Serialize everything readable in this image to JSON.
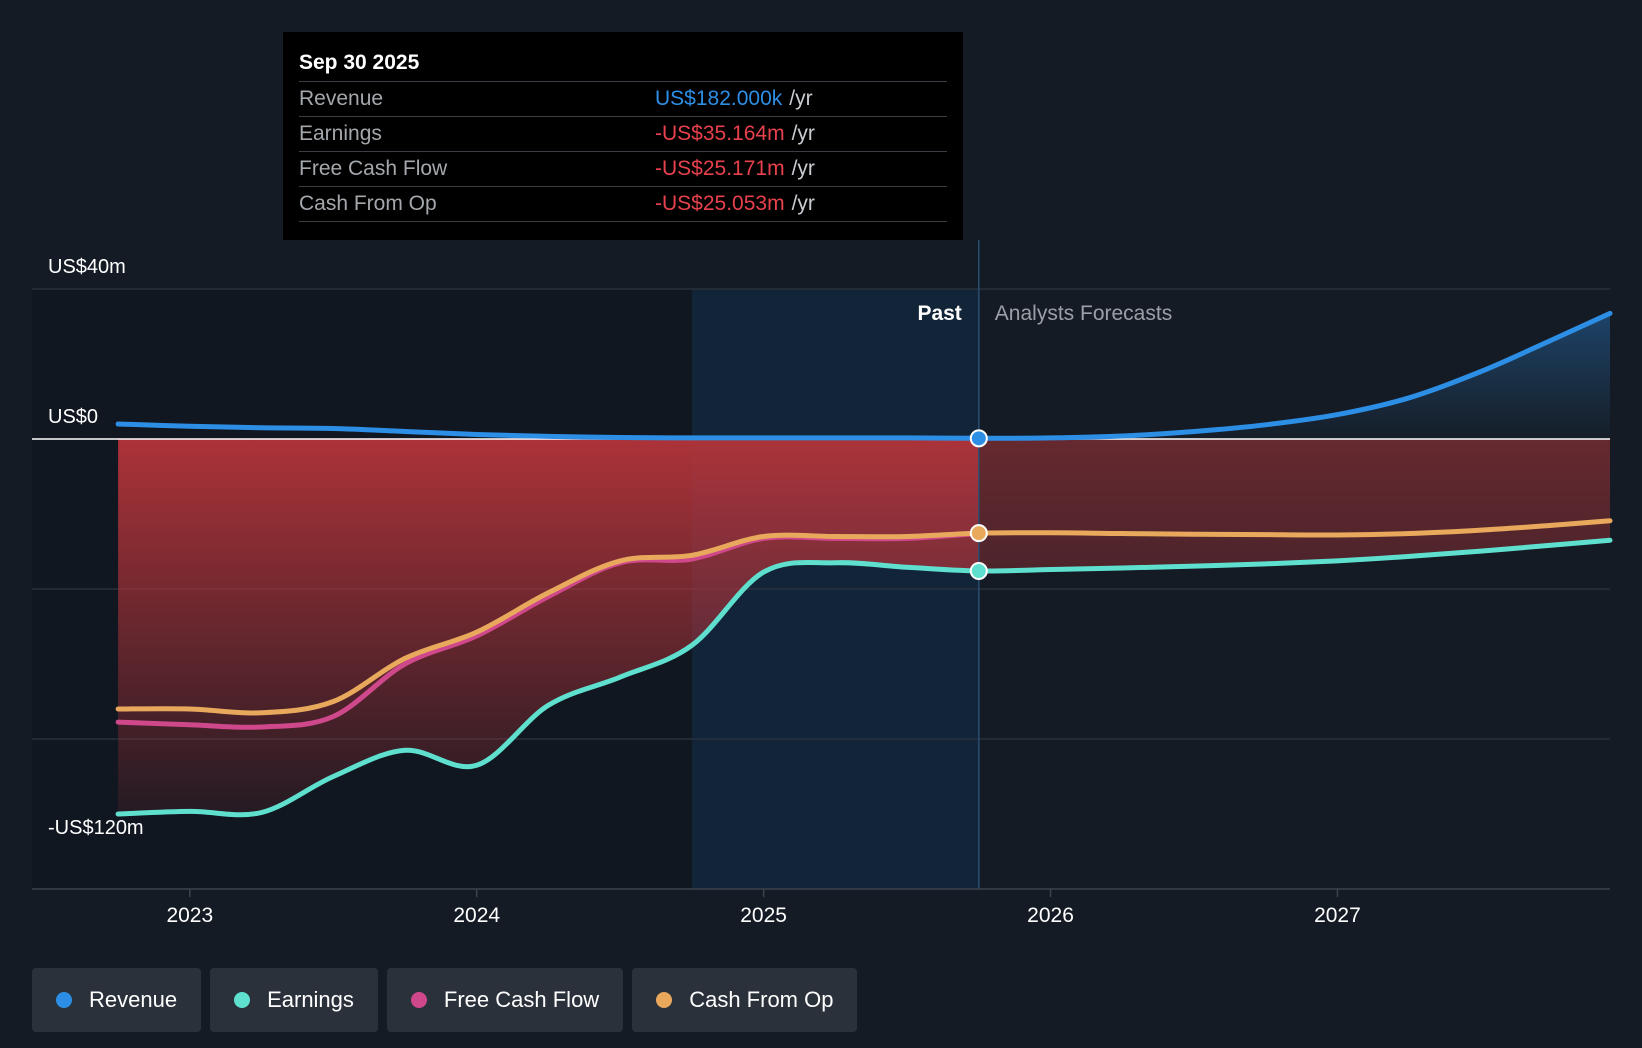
{
  "tooltip": {
    "date": "Sep 30 2025",
    "rows": [
      {
        "label": "Revenue",
        "value": "US$182.000k",
        "unit": "/yr",
        "color": "#2d8ee6"
      },
      {
        "label": "Earnings",
        "value": "-US$35.164m",
        "unit": "/yr",
        "color": "#e8414e"
      },
      {
        "label": "Free Cash Flow",
        "value": "-US$25.171m",
        "unit": "/yr",
        "color": "#e8414e"
      },
      {
        "label": "Cash From Op",
        "value": "-US$25.053m",
        "unit": "/yr",
        "color": "#e8414e"
      }
    ]
  },
  "legend": [
    {
      "label": "Revenue",
      "color": "#2d8ee6"
    },
    {
      "label": "Earnings",
      "color": "#5fe0cf"
    },
    {
      "label": "Free Cash Flow",
      "color": "#d0488c"
    },
    {
      "label": "Cash From Op",
      "color": "#e9a95c"
    }
  ],
  "chart_data": {
    "type": "line",
    "title": "",
    "xlabel": "",
    "ylabel": "",
    "ylim": [
      -120,
      40
    ],
    "y_tick_labels": [
      {
        "value": 40,
        "label": "US$40m"
      },
      {
        "value": 0,
        "label": "US$0"
      },
      {
        "value": -120,
        "label": "-US$120m"
      }
    ],
    "xlim": [
      2022.45,
      2027.95
    ],
    "x_tick_labels": [
      {
        "value": 2023,
        "label": "2023"
      },
      {
        "value": 2024,
        "label": "2024"
      },
      {
        "value": 2025,
        "label": "2025"
      },
      {
        "value": 2026,
        "label": "2026"
      },
      {
        "value": 2027,
        "label": "2027"
      }
    ],
    "past_label": "Past",
    "forecast_label": "Analysts Forecasts",
    "highlight_start": 2024.75,
    "divider_x": 2025.75,
    "series": [
      {
        "name": "Revenue",
        "color": "#2d8ee6",
        "x": [
          2022.75,
          2023.0,
          2023.25,
          2023.5,
          2023.75,
          2024.0,
          2024.25,
          2024.5,
          2024.75,
          2025.0,
          2025.25,
          2025.5,
          2025.75,
          2026.0,
          2026.25,
          2026.5,
          2026.75,
          2027.0,
          2027.25,
          2027.5,
          2027.75,
          2027.95
        ],
        "values": [
          4.0,
          3.4,
          3.0,
          2.8,
          2.0,
          1.2,
          0.7,
          0.4,
          0.3,
          0.3,
          0.3,
          0.3,
          0.18,
          0.3,
          0.8,
          2.0,
          3.8,
          6.5,
          11.0,
          18.0,
          26.5,
          33.5
        ]
      },
      {
        "name": "Earnings",
        "color": "#5fe0cf",
        "x": [
          2022.75,
          2023.0,
          2023.25,
          2023.5,
          2023.75,
          2024.0,
          2024.25,
          2024.5,
          2024.75,
          2025.0,
          2025.25,
          2025.5,
          2025.75,
          2026.0,
          2026.25,
          2026.5,
          2026.75,
          2027.0,
          2027.25,
          2027.5,
          2027.75,
          2027.95
        ],
        "values": [
          -100.0,
          -99.3,
          -99.6,
          -90.0,
          -83.0,
          -87.0,
          -71.0,
          -63.5,
          -55.0,
          -35.5,
          -33.0,
          -34.2,
          -35.2,
          -34.8,
          -34.4,
          -33.9,
          -33.3,
          -32.5,
          -31.3,
          -29.9,
          -28.3,
          -27.0
        ]
      },
      {
        "name": "Free Cash Flow",
        "color": "#d0488c",
        "x": [
          2022.75,
          2023.0,
          2023.25,
          2023.5,
          2023.75,
          2024.0,
          2024.25,
          2024.5,
          2024.75,
          2025.0,
          2025.25,
          2025.5,
          2025.75
        ],
        "values": [
          -75.5,
          -76.2,
          -76.8,
          -74.0,
          -60.0,
          -52.5,
          -42.0,
          -33.0,
          -32.0,
          -26.5,
          -26.5,
          -26.5,
          -25.2
        ]
      },
      {
        "name": "Cash From Op",
        "color": "#e9a95c",
        "x": [
          2022.75,
          2023.0,
          2023.25,
          2023.5,
          2023.75,
          2024.0,
          2024.25,
          2024.5,
          2024.75,
          2025.0,
          2025.25,
          2025.5,
          2025.75,
          2026.0,
          2026.25,
          2026.5,
          2026.75,
          2027.0,
          2027.25,
          2027.5,
          2027.75,
          2027.95
        ],
        "values": [
          -72.0,
          -72.0,
          -73.0,
          -70.0,
          -58.5,
          -51.5,
          -41.0,
          -32.5,
          -31.0,
          -26.0,
          -26.0,
          -26.0,
          -25.1,
          -25.0,
          -25.2,
          -25.4,
          -25.5,
          -25.6,
          -25.2,
          -24.3,
          -23.0,
          -21.8
        ]
      }
    ]
  }
}
